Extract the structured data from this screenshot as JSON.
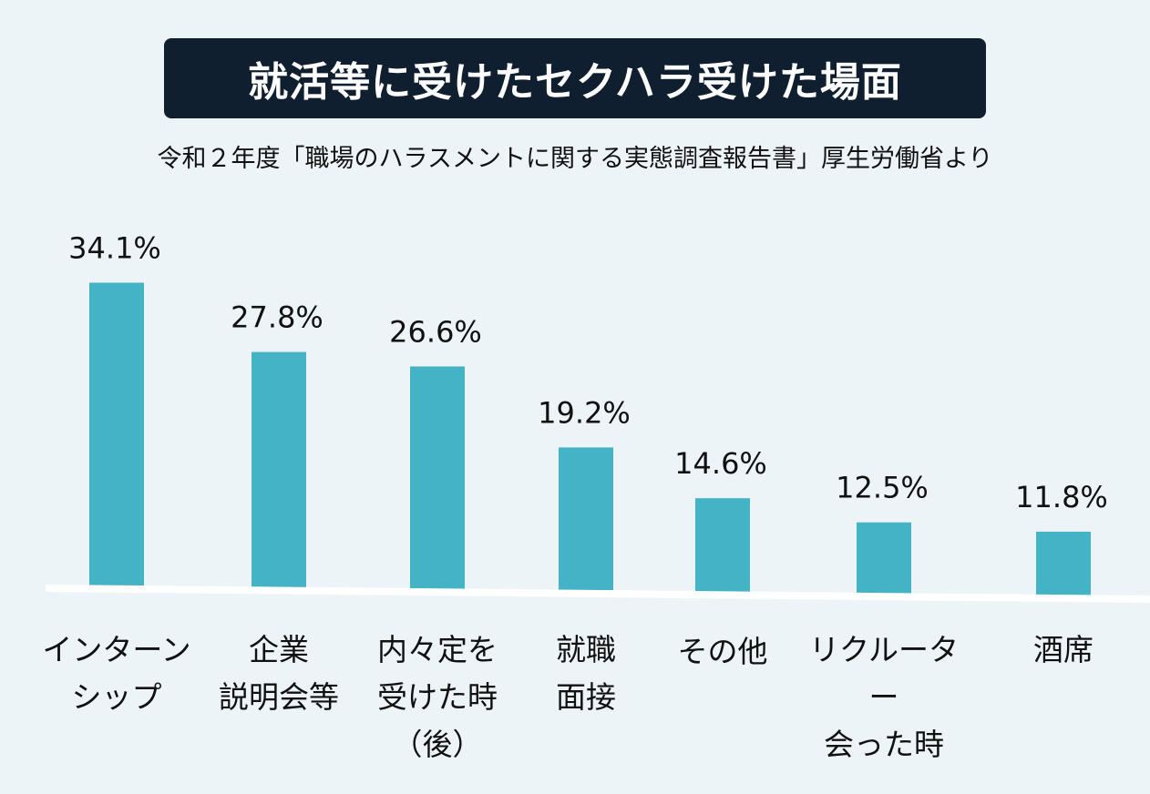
{
  "chart_data": {
    "type": "bar",
    "title": "就活等に受けたセクハラ受けた場面",
    "subtitle": "令和２年度「職場のハラスメントに関する実態調査報告書」厚生労働省より",
    "categories": [
      "インターン\nシップ",
      "企業\n説明会等",
      "内々定を\n受けた時\n（後）",
      "就職\n面接",
      "その他",
      "リクルーター\n会った時",
      "酒席"
    ],
    "values": [
      34.1,
      27.8,
      26.6,
      19.2,
      14.6,
      12.5,
      11.8
    ],
    "value_labels": [
      "34.1%",
      "27.8%",
      "26.6%",
      "19.2%",
      "14.6%",
      "12.5%",
      "11.8%"
    ],
    "xlabel": "",
    "ylabel": "",
    "grid": false,
    "colors": {
      "bar": "#45b3c6",
      "title_bg": "#0f1f30",
      "background": "#edf4f8",
      "baseline": "#ffffff"
    }
  }
}
